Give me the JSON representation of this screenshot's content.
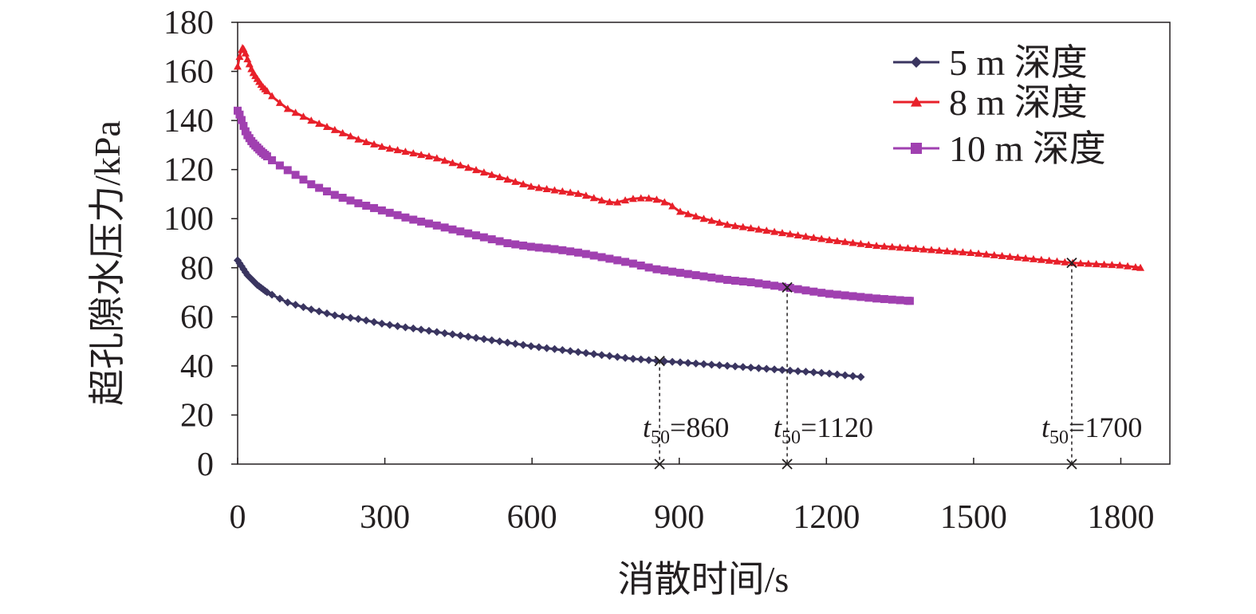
{
  "chart_data": {
    "type": "line",
    "xlabel": "消散时间/s",
    "ylabel": "超孔隙水压力/kPa",
    "xlim": [
      0,
      1900
    ],
    "ylim": [
      0,
      180
    ],
    "x_ticks": [
      0,
      300,
      600,
      900,
      1200,
      1500,
      1800
    ],
    "y_ticks": [
      0,
      20,
      40,
      60,
      80,
      100,
      120,
      140,
      160,
      180
    ],
    "grid": false,
    "legend_position": "top-right",
    "series": [
      {
        "name": "5 m 深度",
        "color": "#3a3560",
        "marker": "diamond",
        "x": [
          0,
          10,
          20,
          40,
          60,
          80,
          100,
          150,
          200,
          250,
          300,
          350,
          400,
          500,
          600,
          700,
          800,
          860,
          900,
          1000,
          1100,
          1200,
          1270
        ],
        "y": [
          83,
          80,
          77,
          73,
          70,
          68,
          66,
          63,
          60.5,
          59,
          57,
          55.5,
          54,
          51,
          48,
          45.5,
          43,
          42,
          41.5,
          40,
          38.5,
          37,
          35.5
        ]
      },
      {
        "name": "8 m 深度",
        "color": "#e8202a",
        "marker": "triangle",
        "x": [
          0,
          5,
          10,
          15,
          20,
          30,
          50,
          75,
          100,
          150,
          200,
          250,
          300,
          350,
          400,
          450,
          500,
          550,
          600,
          650,
          700,
          750,
          770,
          800,
          830,
          850,
          860,
          880,
          900,
          950,
          1000,
          1100,
          1200,
          1300,
          1400,
          1500,
          1600,
          1700,
          1750,
          1800,
          1840
        ],
        "y": [
          162,
          167,
          170,
          168,
          165,
          160,
          154,
          149,
          145,
          140,
          136,
          132,
          129,
          127,
          125,
          122,
          119,
          116,
          113,
          111.5,
          110,
          107,
          106.5,
          108,
          108.5,
          108,
          107.5,
          106,
          103,
          100,
          97.5,
          94.5,
          91.5,
          89,
          87.5,
          86,
          84,
          82,
          81.5,
          81,
          80
        ]
      },
      {
        "name": "10 m 深度",
        "color": "#a040b0",
        "marker": "square",
        "x": [
          0,
          5,
          10,
          15,
          20,
          30,
          50,
          75,
          100,
          150,
          200,
          250,
          300,
          350,
          400,
          450,
          500,
          550,
          600,
          650,
          700,
          750,
          800,
          850,
          900,
          950,
          1000,
          1050,
          1100,
          1120,
          1150,
          1200,
          1250,
          1300,
          1370
        ],
        "y": [
          144,
          142,
          139,
          136,
          134,
          131,
          127,
          123,
          120,
          114,
          109.5,
          106,
          103,
          100,
          97.5,
          95,
          92.5,
          90,
          88.5,
          87.5,
          86,
          84,
          82,
          79.5,
          78,
          76.5,
          75,
          74,
          72.5,
          72,
          71,
          69.5,
          68.5,
          67.5,
          66.5
        ]
      }
    ],
    "annotations": [
      {
        "label_t": "t",
        "label_sub": "50",
        "label_value": "=860",
        "x": 860,
        "y": 42
      },
      {
        "label_t": "t",
        "label_sub": "50",
        "label_value": "=1120",
        "x": 1120,
        "y": 72
      },
      {
        "label_t": "t",
        "label_sub": "50",
        "label_value": "=1700",
        "x": 1700,
        "y": 82
      }
    ]
  }
}
